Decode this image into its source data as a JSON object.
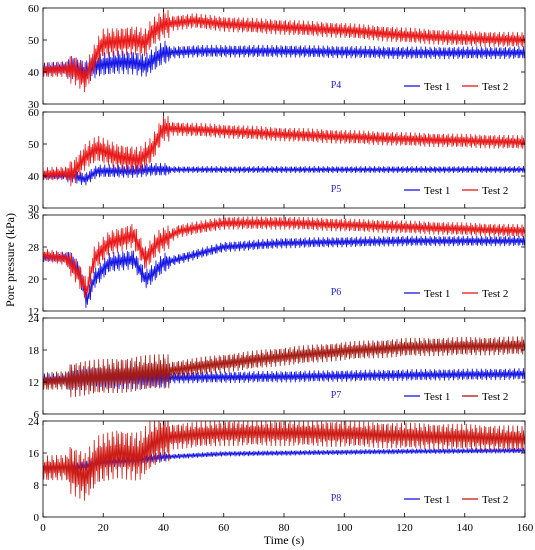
{
  "chart_data": {
    "type": "line",
    "xlabel": "Time (s)",
    "ylabel": "Pore pressure (kPa)",
    "x_range": [
      0,
      160
    ],
    "x_ticks": [
      0,
      20,
      40,
      60,
      80,
      100,
      120,
      140,
      160
    ],
    "colors": {
      "test1": "#1515e6",
      "test2": "#e81818"
    },
    "panels": [
      {
        "label": "P4",
        "ylim": [
          30,
          60
        ],
        "y_ticks": [
          30,
          40,
          50,
          60
        ],
        "legend": [
          "Test 1",
          "Test 2"
        ],
        "series": [
          {
            "name": "Test 1",
            "color": "#1515e6",
            "oscillation": 1.8,
            "points": [
              [
                0,
                41
              ],
              [
                10,
                41.5
              ],
              [
                14,
                40
              ],
              [
                18,
                42
              ],
              [
                25,
                43
              ],
              [
                30,
                43
              ],
              [
                34,
                42
              ],
              [
                40,
                46
              ],
              [
                50,
                46.5
              ],
              [
                80,
                46.5
              ],
              [
                120,
                46
              ],
              [
                160,
                46
              ]
            ]
          },
          {
            "name": "Test 2",
            "color": "#e81818",
            "oscillation": 2.2,
            "points": [
              [
                0,
                40.5
              ],
              [
                10,
                41
              ],
              [
                14,
                38
              ],
              [
                18,
                46
              ],
              [
                20,
                49
              ],
              [
                30,
                50
              ],
              [
                34,
                49
              ],
              [
                36,
                52
              ],
              [
                40,
                55
              ],
              [
                50,
                56
              ],
              [
                60,
                55
              ],
              [
                80,
                54
              ],
              [
                100,
                53
              ],
              [
                120,
                51.5
              ],
              [
                140,
                50.5
              ],
              [
                160,
                50
              ]
            ]
          }
        ]
      },
      {
        "label": "P5",
        "ylim": [
          30,
          60
        ],
        "y_ticks": [
          30,
          40,
          50,
          60
        ],
        "legend": [
          "Test 1",
          "Test 2"
        ],
        "series": [
          {
            "name": "Test 1",
            "color": "#1515e6",
            "oscillation": 1.0,
            "points": [
              [
                0,
                40
              ],
              [
                10,
                40
              ],
              [
                14,
                39
              ],
              [
                18,
                41.5
              ],
              [
                30,
                41.5
              ],
              [
                36,
                42
              ],
              [
                40,
                42
              ],
              [
                60,
                42
              ],
              [
                160,
                42
              ]
            ]
          },
          {
            "name": "Test 2",
            "color": "#e81818",
            "oscillation": 2.0,
            "points": [
              [
                0,
                40.5
              ],
              [
                10,
                41
              ],
              [
                14,
                46
              ],
              [
                18,
                48.5
              ],
              [
                25,
                46
              ],
              [
                32,
                45
              ],
              [
                36,
                48
              ],
              [
                40,
                55
              ],
              [
                50,
                54.5
              ],
              [
                80,
                53
              ],
              [
                120,
                51.5
              ],
              [
                160,
                50.5
              ]
            ]
          }
        ]
      },
      {
        "label": "P6",
        "ylim": [
          12,
          36
        ],
        "y_ticks": [
          12,
          20,
          28,
          36
        ],
        "legend": [
          "Test 1",
          "Test 2"
        ],
        "series": [
          {
            "name": "Test 1",
            "color": "#1515e6",
            "oscillation": 1.2,
            "points": [
              [
                0,
                25.5
              ],
              [
                8,
                25.5
              ],
              [
                12,
                22
              ],
              [
                14.5,
                14.5
              ],
              [
                17,
                20
              ],
              [
                22,
                24
              ],
              [
                30,
                25
              ],
              [
                34,
                20
              ],
              [
                36,
                21
              ],
              [
                40,
                24
              ],
              [
                60,
                28
              ],
              [
                80,
                29
              ],
              [
                120,
                29.5
              ],
              [
                160,
                29.5
              ]
            ]
          },
          {
            "name": "Test 2",
            "color": "#e81818",
            "oscillation": 1.5,
            "points": [
              [
                0,
                26
              ],
              [
                8,
                25
              ],
              [
                12,
                21
              ],
              [
                14.5,
                17
              ],
              [
                17,
                25
              ],
              [
                22,
                29
              ],
              [
                30,
                31
              ],
              [
                34,
                25
              ],
              [
                38,
                29
              ],
              [
                45,
                32
              ],
              [
                60,
                34
              ],
              [
                80,
                34
              ],
              [
                120,
                33
              ],
              [
                160,
                32
              ]
            ]
          }
        ]
      },
      {
        "label": "P7",
        "ylim": [
          6,
          24
        ],
        "y_ticks": [
          6,
          12,
          18,
          24
        ],
        "legend": [
          "Test 1",
          "Test 2"
        ],
        "series": [
          {
            "name": "Test 1",
            "color": "#1515e6",
            "oscillation": 1.0,
            "points": [
              [
                0,
                12.5
              ],
              [
                40,
                12.8
              ],
              [
                80,
                13
              ],
              [
                120,
                13.3
              ],
              [
                160,
                13.5
              ]
            ]
          },
          {
            "name": "Test 2",
            "color": "#a61b14",
            "oscillation": 1.6,
            "points": [
              [
                0,
                12
              ],
              [
                10,
                12.5
              ],
              [
                20,
                13
              ],
              [
                40,
                14
              ],
              [
                60,
                15.5
              ],
              [
                80,
                16.8
              ],
              [
                100,
                17.8
              ],
              [
                120,
                18.5
              ],
              [
                140,
                18.7
              ],
              [
                160,
                18.8
              ]
            ]
          }
        ]
      },
      {
        "label": "P8",
        "ylim": [
          0,
          24
        ],
        "y_ticks": [
          0,
          8,
          16,
          24
        ],
        "legend": [
          "Test 1",
          "Test 2"
        ],
        "series": [
          {
            "name": "Test 1",
            "color": "#1515e6",
            "oscillation": 0.6,
            "points": [
              [
                0,
                12.5
              ],
              [
                10,
                12.5
              ],
              [
                20,
                13.5
              ],
              [
                30,
                14
              ],
              [
                40,
                15
              ],
              [
                60,
                15.8
              ],
              [
                80,
                16
              ],
              [
                100,
                16.2
              ],
              [
                120,
                16.4
              ],
              [
                160,
                16.6
              ]
            ]
          },
          {
            "name": "Test 2",
            "color": "#cc1a14",
            "oscillation": 3.0,
            "points": [
              [
                0,
                12
              ],
              [
                8,
                12.5
              ],
              [
                14,
                10
              ],
              [
                18,
                14
              ],
              [
                25,
                16
              ],
              [
                32,
                15
              ],
              [
                36,
                18
              ],
              [
                40,
                20
              ],
              [
                50,
                20.5
              ],
              [
                60,
                21
              ],
              [
                80,
                21
              ],
              [
                100,
                20.8
              ],
              [
                120,
                20.3
              ],
              [
                140,
                20
              ],
              [
                160,
                19.5
              ]
            ]
          }
        ]
      }
    ]
  }
}
